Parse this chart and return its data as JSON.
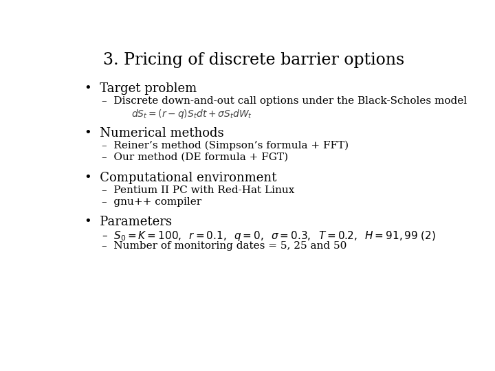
{
  "title": "3. Pricing of discrete barrier options",
  "background_color": "#ffffff",
  "text_color": "#000000",
  "title_fontsize": 17,
  "body_fontsize": 13,
  "sub_fontsize": 11,
  "formula_fontsize": 10,
  "sections": [
    {
      "bullet": "Target problem",
      "subs": [
        "Discrete down-and-out call options under the Black-Scholes model"
      ],
      "has_formula": true,
      "formula": "$dS_t = (r - q)S_t dt + \\sigma S_t dW_t$"
    },
    {
      "bullet": "Numerical methods",
      "subs": [
        "Reiner’s method (Simpson’s formula + FFT)",
        "Our method (DE formula + FGT)"
      ],
      "has_formula": false,
      "formula": ""
    },
    {
      "bullet": "Computational environment",
      "subs": [
        "Pentium II PC with Red-Hat Linux",
        "gnu++ compiler"
      ],
      "has_formula": false,
      "formula": ""
    },
    {
      "bullet": "Parameters",
      "subs_plain": [
        "Number of monitoring dates = 5, 25 and 50"
      ],
      "subs_math": "$S_0 = K = 100, \\;\\; r = 0.1, \\;\\; q = 0, \\;\\; \\sigma= 0.3, \\;\\; T = 0.2, \\;\\; H = 91, 99 \\; (2)$",
      "has_formula": false,
      "formula": ""
    }
  ]
}
